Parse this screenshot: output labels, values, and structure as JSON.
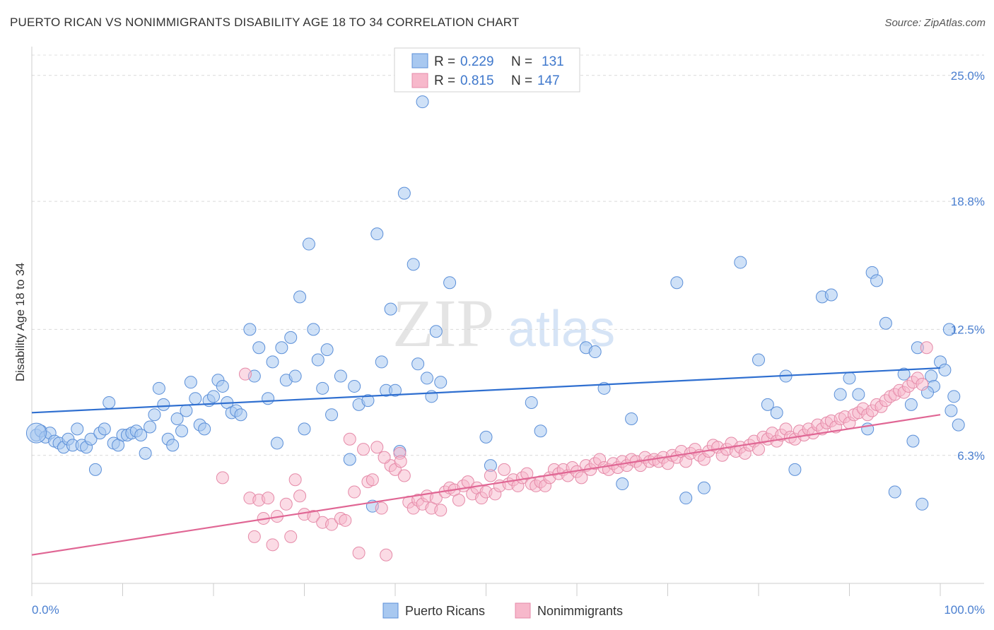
{
  "title": "PUERTO RICAN VS NONIMMIGRANTS DISABILITY AGE 18 TO 34 CORRELATION CHART",
  "source": "Source: ZipAtlas.com",
  "watermark": {
    "zip": "ZIP",
    "atlas": "atlas"
  },
  "legend_top": {
    "rows": [
      {
        "r_label": "R =",
        "r_value": "0.229",
        "n_label": "N =",
        "n_value": "131"
      },
      {
        "r_label": "R =",
        "r_value": "0.815",
        "n_label": "N =",
        "n_value": "147"
      }
    ]
  },
  "legend_bottom": [
    "Puerto Ricans",
    "Nonimmigrants"
  ],
  "chart_data": {
    "type": "scatter",
    "ylabel": "Disability Age 18 to 34",
    "xlabel": "",
    "xlim": [
      0,
      100
    ],
    "ylim": [
      0,
      26
    ],
    "x_tick_labels": [
      "0.0%",
      "100.0%"
    ],
    "y_ticks": [
      6.3,
      12.5,
      18.8,
      25.0
    ],
    "y_tick_labels": [
      "6.3%",
      "12.5%",
      "18.8%",
      "25.0%"
    ],
    "grid": "horizontal dashed",
    "colors": {
      "blue_fill": "#a8c8f0",
      "blue_stroke": "#5b8fd8",
      "blue_line": "#2f6fd0",
      "pink_fill": "#f7b8cb",
      "pink_stroke": "#e58aa8",
      "pink_line": "#e06694"
    },
    "series": [
      {
        "name": "Puerto Ricans",
        "R": 0.229,
        "N": 131,
        "trend": [
          [
            0,
            8.4
          ],
          [
            100,
            10.6
          ]
        ],
        "points": [
          [
            0.5,
            7.3
          ],
          [
            1,
            7.5
          ],
          [
            1.5,
            7.2
          ],
          [
            2,
            7.4
          ],
          [
            2.5,
            7.0
          ],
          [
            3,
            6.9
          ],
          [
            3.5,
            6.7
          ],
          [
            4,
            7.1
          ],
          [
            4.5,
            6.8
          ],
          [
            5,
            7.6
          ],
          [
            5.5,
            6.8
          ],
          [
            6,
            6.7
          ],
          [
            6.5,
            7.1
          ],
          [
            7,
            5.6
          ],
          [
            7.5,
            7.4
          ],
          [
            8,
            7.6
          ],
          [
            8.5,
            8.9
          ],
          [
            9,
            6.9
          ],
          [
            9.5,
            6.8
          ],
          [
            10,
            7.3
          ],
          [
            10.5,
            7.3
          ],
          [
            11,
            7.4
          ],
          [
            11.5,
            7.5
          ],
          [
            12,
            7.3
          ],
          [
            12.5,
            6.4
          ],
          [
            13,
            7.7
          ],
          [
            13.5,
            8.3
          ],
          [
            14,
            9.6
          ],
          [
            14.5,
            8.8
          ],
          [
            15,
            7.1
          ],
          [
            15.5,
            6.8
          ],
          [
            16,
            8.1
          ],
          [
            16.5,
            7.5
          ],
          [
            17,
            8.5
          ],
          [
            17.5,
            9.9
          ],
          [
            18,
            9.1
          ],
          [
            18.5,
            7.8
          ],
          [
            19,
            7.6
          ],
          [
            19.5,
            9.0
          ],
          [
            20,
            9.2
          ],
          [
            20.5,
            10.0
          ],
          [
            21,
            9.7
          ],
          [
            21.5,
            8.9
          ],
          [
            22,
            8.4
          ],
          [
            22.5,
            8.5
          ],
          [
            23,
            8.3
          ],
          [
            24,
            12.5
          ],
          [
            24.5,
            10.2
          ],
          [
            25,
            11.6
          ],
          [
            26,
            9.1
          ],
          [
            26.5,
            10.9
          ],
          [
            27,
            6.9
          ],
          [
            27.5,
            11.6
          ],
          [
            28,
            10.0
          ],
          [
            28.5,
            12.1
          ],
          [
            29,
            10.2
          ],
          [
            29.5,
            14.1
          ],
          [
            30,
            7.6
          ],
          [
            30.5,
            16.7
          ],
          [
            31,
            12.5
          ],
          [
            31.5,
            11.0
          ],
          [
            32,
            9.6
          ],
          [
            32.5,
            11.5
          ],
          [
            33,
            8.3
          ],
          [
            34,
            10.2
          ],
          [
            35,
            6.1
          ],
          [
            35.5,
            9.7
          ],
          [
            36,
            8.8
          ],
          [
            37,
            9.0
          ],
          [
            37.5,
            3.8
          ],
          [
            38,
            17.2
          ],
          [
            38.5,
            10.9
          ],
          [
            39,
            9.5
          ],
          [
            39.5,
            13.5
          ],
          [
            40,
            9.5
          ],
          [
            40.5,
            6.5
          ],
          [
            41,
            19.2
          ],
          [
            42,
            15.7
          ],
          [
            42.5,
            10.8
          ],
          [
            43,
            23.7
          ],
          [
            43.5,
            10.1
          ],
          [
            44,
            9.2
          ],
          [
            44.5,
            12.4
          ],
          [
            45,
            9.9
          ],
          [
            46,
            14.8
          ],
          [
            50,
            7.2
          ],
          [
            50.5,
            5.8
          ],
          [
            55,
            8.9
          ],
          [
            56,
            7.5
          ],
          [
            61,
            11.6
          ],
          [
            62,
            11.4
          ],
          [
            63,
            9.6
          ],
          [
            65,
            4.9
          ],
          [
            66,
            8.1
          ],
          [
            71,
            14.8
          ],
          [
            72,
            4.2
          ],
          [
            74,
            4.7
          ],
          [
            78,
            15.8
          ],
          [
            80,
            11.0
          ],
          [
            81,
            8.8
          ],
          [
            82,
            8.4
          ],
          [
            83,
            10.2
          ],
          [
            84,
            5.6
          ],
          [
            87,
            14.1
          ],
          [
            88,
            14.2
          ],
          [
            89,
            9.3
          ],
          [
            90,
            10.1
          ],
          [
            91,
            9.3
          ],
          [
            92,
            7.6
          ],
          [
            92.5,
            15.3
          ],
          [
            93,
            14.9
          ],
          [
            94,
            12.8
          ],
          [
            95,
            4.5
          ],
          [
            96,
            10.3
          ],
          [
            97,
            7.0
          ],
          [
            97.5,
            11.6
          ],
          [
            98,
            3.9
          ],
          [
            99,
            10.2
          ],
          [
            100,
            10.9
          ],
          [
            100.5,
            10.5
          ],
          [
            101,
            12.5
          ],
          [
            101.5,
            9.2
          ],
          [
            102,
            7.8
          ],
          [
            101.2,
            8.5
          ],
          [
            99.3,
            9.7
          ],
          [
            96.8,
            8.8
          ],
          [
            98.6,
            9.4
          ]
        ]
      },
      {
        "name": "Nonimmigrants",
        "R": 0.815,
        "N": 147,
        "trend": [
          [
            0,
            1.4
          ],
          [
            100,
            8.3
          ]
        ],
        "points": [
          [
            21,
            5.2
          ],
          [
            23.5,
            10.3
          ],
          [
            24,
            4.2
          ],
          [
            24.5,
            2.3
          ],
          [
            25,
            4.1
          ],
          [
            25.5,
            3.2
          ],
          [
            26,
            4.2
          ],
          [
            26.5,
            1.9
          ],
          [
            27,
            3.3
          ],
          [
            28,
            3.9
          ],
          [
            28.5,
            2.3
          ],
          [
            29,
            5.1
          ],
          [
            29.5,
            4.3
          ],
          [
            30,
            3.4
          ],
          [
            31,
            3.3
          ],
          [
            32,
            3.0
          ],
          [
            33,
            2.9
          ],
          [
            34,
            3.2
          ],
          [
            34.5,
            3.1
          ],
          [
            35,
            7.1
          ],
          [
            35.5,
            4.5
          ],
          [
            36,
            1.5
          ],
          [
            37,
            5.0
          ],
          [
            37.5,
            5.1
          ],
          [
            38,
            6.7
          ],
          [
            38.5,
            3.7
          ],
          [
            39,
            1.4
          ],
          [
            39.5,
            5.8
          ],
          [
            40,
            5.6
          ],
          [
            40.5,
            6.4
          ],
          [
            41,
            5.3
          ],
          [
            41.5,
            4.0
          ],
          [
            42,
            3.7
          ],
          [
            42.5,
            4.1
          ],
          [
            43,
            3.9
          ],
          [
            43.5,
            4.3
          ],
          [
            44,
            3.7
          ],
          [
            44.5,
            4.2
          ],
          [
            45,
            3.6
          ],
          [
            45.5,
            4.5
          ],
          [
            46,
            4.7
          ],
          [
            46.5,
            4.6
          ],
          [
            47,
            4.1
          ],
          [
            47.5,
            4.8
          ],
          [
            48,
            5.0
          ],
          [
            48.5,
            4.4
          ],
          [
            49,
            4.7
          ],
          [
            49.5,
            4.2
          ],
          [
            50,
            4.5
          ],
          [
            50.5,
            5.3
          ],
          [
            51,
            4.4
          ],
          [
            51.5,
            4.8
          ],
          [
            52,
            5.6
          ],
          [
            52.5,
            4.9
          ],
          [
            53,
            5.1
          ],
          [
            53.5,
            4.8
          ],
          [
            54,
            5.2
          ],
          [
            54.5,
            5.4
          ],
          [
            55,
            4.9
          ],
          [
            55.5,
            4.8
          ],
          [
            56,
            5.0
          ],
          [
            56.5,
            4.8
          ],
          [
            57,
            5.2
          ],
          [
            57.5,
            5.6
          ],
          [
            58,
            5.4
          ],
          [
            58.5,
            5.6
          ],
          [
            59,
            5.3
          ],
          [
            59.5,
            5.7
          ],
          [
            60,
            5.5
          ],
          [
            60.5,
            5.2
          ],
          [
            61,
            5.8
          ],
          [
            61.5,
            5.6
          ],
          [
            62,
            5.9
          ],
          [
            62.5,
            6.1
          ],
          [
            63,
            5.7
          ],
          [
            63.5,
            5.6
          ],
          [
            64,
            5.9
          ],
          [
            64.5,
            5.7
          ],
          [
            65,
            6.0
          ],
          [
            65.5,
            5.8
          ],
          [
            66,
            6.1
          ],
          [
            66.5,
            6.0
          ],
          [
            67,
            5.8
          ],
          [
            67.5,
            6.2
          ],
          [
            68,
            6.0
          ],
          [
            68.5,
            6.1
          ],
          [
            69,
            6.0
          ],
          [
            69.5,
            6.2
          ],
          [
            70,
            5.9
          ],
          [
            70.5,
            6.3
          ],
          [
            71,
            6.2
          ],
          [
            71.5,
            6.5
          ],
          [
            72,
            6.0
          ],
          [
            72.5,
            6.4
          ],
          [
            73,
            6.6
          ],
          [
            73.5,
            6.3
          ],
          [
            74,
            6.1
          ],
          [
            74.5,
            6.5
          ],
          [
            75,
            6.8
          ],
          [
            75.5,
            6.7
          ],
          [
            76,
            6.3
          ],
          [
            76.5,
            6.6
          ],
          [
            77,
            6.9
          ],
          [
            77.5,
            6.5
          ],
          [
            78,
            6.7
          ],
          [
            78.5,
            6.4
          ],
          [
            79,
            6.8
          ],
          [
            79.5,
            7.0
          ],
          [
            80,
            6.6
          ],
          [
            80.5,
            7.2
          ],
          [
            81,
            7.1
          ],
          [
            81.5,
            7.4
          ],
          [
            82,
            7.0
          ],
          [
            82.5,
            7.3
          ],
          [
            83,
            7.6
          ],
          [
            83.5,
            7.2
          ],
          [
            84,
            7.1
          ],
          [
            84.5,
            7.5
          ],
          [
            85,
            7.3
          ],
          [
            85.5,
            7.6
          ],
          [
            86,
            7.4
          ],
          [
            86.5,
            7.8
          ],
          [
            87,
            7.6
          ],
          [
            87.5,
            7.9
          ],
          [
            88,
            8.0
          ],
          [
            88.5,
            7.7
          ],
          [
            89,
            8.1
          ],
          [
            89.5,
            8.2
          ],
          [
            90,
            7.9
          ],
          [
            90.5,
            8.3
          ],
          [
            91,
            8.4
          ],
          [
            91.5,
            8.6
          ],
          [
            92,
            8.3
          ],
          [
            92.5,
            8.5
          ],
          [
            93,
            8.8
          ],
          [
            93.5,
            8.7
          ],
          [
            94,
            9.0
          ],
          [
            94.5,
            9.2
          ],
          [
            95,
            9.3
          ],
          [
            95.5,
            9.5
          ],
          [
            96,
            9.4
          ],
          [
            96.5,
            9.7
          ],
          [
            97,
            9.9
          ],
          [
            97.5,
            10.1
          ],
          [
            98,
            9.8
          ],
          [
            98.5,
            11.6
          ],
          [
            36.5,
            6.6
          ],
          [
            38.8,
            6.2
          ],
          [
            40.6,
            6.0
          ]
        ]
      }
    ]
  }
}
